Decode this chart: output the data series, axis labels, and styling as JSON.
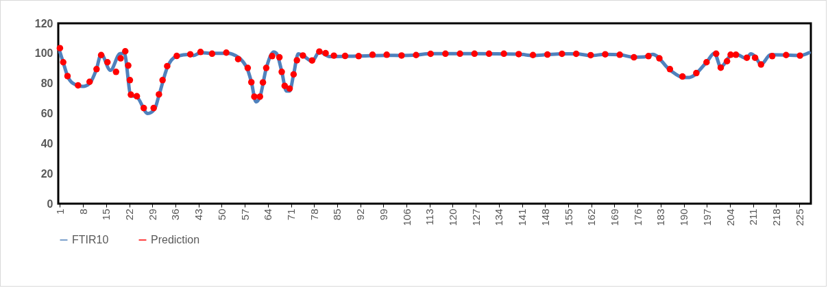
{
  "chart_data": {
    "type": "line",
    "xlim": [
      0.5,
      228.5
    ],
    "xticks": [
      1,
      8,
      15,
      22,
      29,
      36,
      43,
      50,
      57,
      64,
      71,
      78,
      85,
      92,
      99,
      106,
      113,
      120,
      127,
      134,
      141,
      148,
      155,
      162,
      169,
      176,
      183,
      190,
      197,
      204,
      211,
      218,
      225
    ],
    "ylim": [
      0,
      120
    ],
    "yticks": [
      0,
      20,
      40,
      60,
      80,
      100,
      120
    ],
    "grid": false,
    "legend": "bottom",
    "series": [
      {
        "name": "FTIR10",
        "type": "line",
        "color": "#4f81bd",
        "x": [
          1,
          2,
          3.3,
          5,
          8,
          10,
          12,
          13.5,
          16.3,
          19.2,
          20.5,
          22.5,
          24.3,
          27.6,
          29.7,
          31,
          33.6,
          36.3,
          40.5,
          41.5,
          43.6,
          47.1,
          51.9,
          53.3,
          57.5,
          59,
          60.4,
          61.6,
          63.5,
          65.8,
          66.6,
          68.2,
          69.6,
          70.6,
          71.8,
          73.2,
          74.6,
          77.4,
          79.6,
          82.7,
          91.3,
          100,
          104.5,
          109,
          113.1,
          126.6,
          140,
          144.3,
          148.7,
          153.1,
          157.4,
          161.8,
          166.2,
          170.6,
          174.9,
          178,
          180.6,
          185.8,
          190,
          191.7,
          196.9,
          199.3,
          201.2,
          204.2,
          205.8,
          209,
          210.3,
          211.6,
          213.4,
          216.3,
          225.2,
          228
        ],
        "values": [
          101,
          94,
          85,
          80,
          78,
          80,
          89,
          99.5,
          88.7,
          99.8,
          100,
          72,
          71,
          60,
          63,
          72,
          91,
          98,
          99.4,
          98.6,
          100.5,
          100,
          100,
          99.4,
          91,
          81,
          67.7,
          71,
          90,
          100.9,
          100,
          88,
          75,
          75,
          86,
          99.7,
          98.6,
          94.8,
          100.9,
          97.9,
          98.2,
          98.7,
          98.6,
          98.9,
          99.8,
          99.8,
          99.5,
          98.6,
          99.2,
          99.7,
          99.7,
          98.5,
          99.4,
          99.1,
          97.4,
          97.6,
          99.4,
          89,
          83.9,
          84,
          94.1,
          100.1,
          91,
          98.6,
          99.4,
          96.7,
          99.7,
          98,
          92.6,
          99.1,
          98.6,
          100.5
        ]
      },
      {
        "name": "Prediction",
        "type": "scatter",
        "color": "#ff0000",
        "marker": "circle",
        "x": [
          1,
          2,
          3.3,
          6.5,
          10,
          12.1,
          13.5,
          15.4,
          18,
          19.4,
          20.8,
          21.7,
          22.2,
          22.5,
          24.3,
          26.4,
          29.4,
          31,
          32.1,
          33.5,
          36.4,
          40.5,
          43.6,
          47.1,
          51.4,
          55,
          57.9,
          59,
          59.9,
          61.6,
          62.5,
          63.5,
          65.3,
          67.5,
          68.2,
          69.1,
          70.6,
          71.8,
          72.8,
          74.6,
          77.4,
          79.6,
          81.5,
          84,
          87.4,
          91.5,
          95.7,
          100,
          104.5,
          108.9,
          113.3,
          117.8,
          122.2,
          126.6,
          131,
          135.5,
          140,
          144.3,
          148.7,
          153.1,
          157.4,
          161.8,
          166.2,
          170.6,
          174.9,
          179.3,
          182.6,
          185.8,
          189.6,
          193.8,
          196.9,
          199.8,
          201.2,
          203.1,
          204.2,
          205.8,
          209.1,
          211.6,
          213.4,
          216.8,
          221,
          225.2
        ],
        "values": [
          103.5,
          94.1,
          84.9,
          78.7,
          81.1,
          89.5,
          98.9,
          94.1,
          87.7,
          96.7,
          101.4,
          91.9,
          82.2,
          72.5,
          71.5,
          63.6,
          63.6,
          72.7,
          82.2,
          91.5,
          98.3,
          99.4,
          100.9,
          99.8,
          100.5,
          96.2,
          90.3,
          80.8,
          71.2,
          71.2,
          80.7,
          90.3,
          98.2,
          97.4,
          87.7,
          78.4,
          76.6,
          86,
          95.4,
          98.6,
          95.3,
          101.2,
          100.1,
          98.5,
          98.3,
          98.2,
          99.1,
          99.1,
          98.6,
          98.9,
          99.7,
          99.8,
          99.8,
          99.8,
          99.8,
          99.8,
          99.5,
          98.9,
          99.2,
          99.7,
          99.7,
          98.8,
          99.4,
          99.1,
          97.4,
          98.2,
          96.7,
          89.5,
          84.6,
          86.9,
          94.1,
          99.8,
          90.5,
          94.8,
          99.1,
          99.1,
          97.1,
          97.1,
          92.6,
          98.2,
          98.9,
          98.5
        ]
      }
    ]
  }
}
